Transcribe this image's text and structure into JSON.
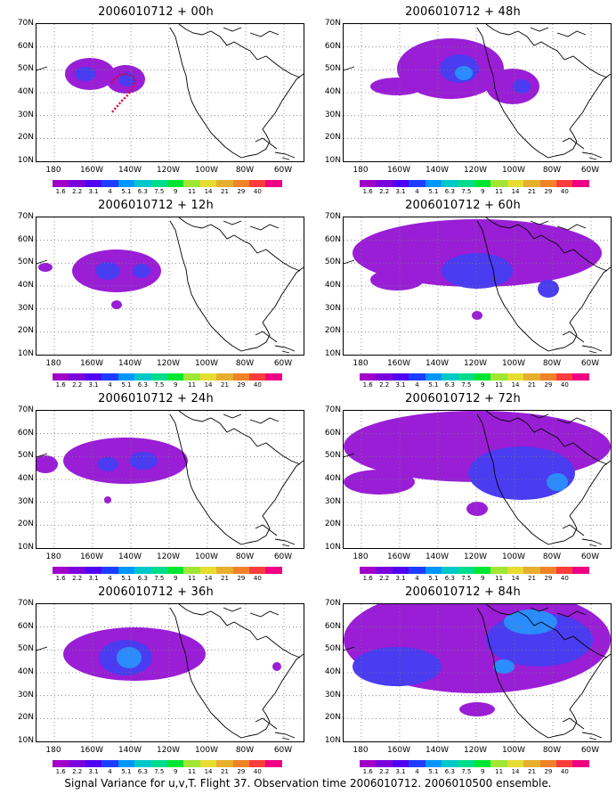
{
  "panels": [
    {
      "title": "2006010712 + 00h"
    },
    {
      "title": "2006010712 + 48h"
    },
    {
      "title": "2006010712 + 12h"
    },
    {
      "title": "2006010712 + 60h"
    },
    {
      "title": "2006010712 + 24h"
    },
    {
      "title": "2006010712 + 72h"
    },
    {
      "title": "2006010712 + 36h"
    },
    {
      "title": "2006010712 + 84h"
    }
  ],
  "y_ticks": [
    "70N",
    "60N",
    "50N",
    "40N",
    "30N",
    "20N",
    "10N"
  ],
  "x_ticks": [
    "180",
    "160W",
    "140W",
    "120W",
    "100W",
    "80W",
    "60W"
  ],
  "colorbar": {
    "labels": [
      "1.6",
      "2.2",
      "3.1",
      "4",
      "5.1",
      "6.3",
      "7.5",
      "9",
      "11",
      "14",
      "21",
      "29",
      "40"
    ],
    "colors": [
      "#a000c8",
      "#7a00dc",
      "#5000f0",
      "#1e3cff",
      "#0096ff",
      "#00c8c8",
      "#00dc8c",
      "#00e632",
      "#a0e632",
      "#e6dc32",
      "#e6af2d",
      "#f08228",
      "#fa3c3c",
      "#f00082"
    ]
  },
  "caption": "Signal Variance for u,v,T. Flight 37. Observation time 2006010712. 2006010500 ensemble."
}
